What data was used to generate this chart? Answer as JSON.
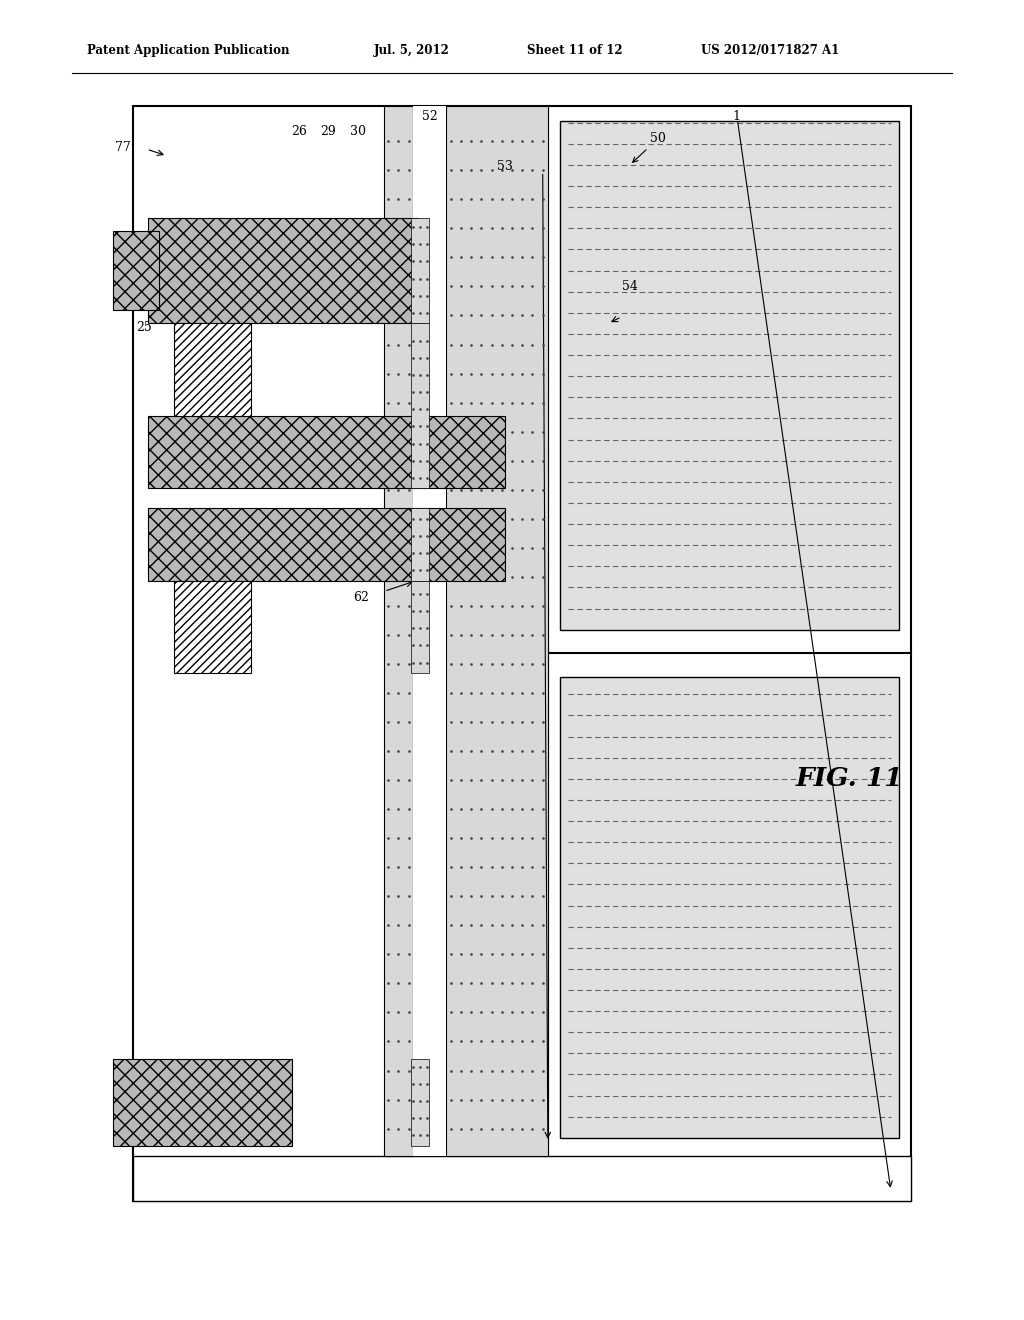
{
  "title_left": "Patent Application Publication",
  "title_mid": "Jul. 5, 2012",
  "title_sheet": "Sheet 11 of 12",
  "title_right": "US 2012/0171827 A1",
  "fig_label": "FIG. 11",
  "background": "#ffffff"
}
